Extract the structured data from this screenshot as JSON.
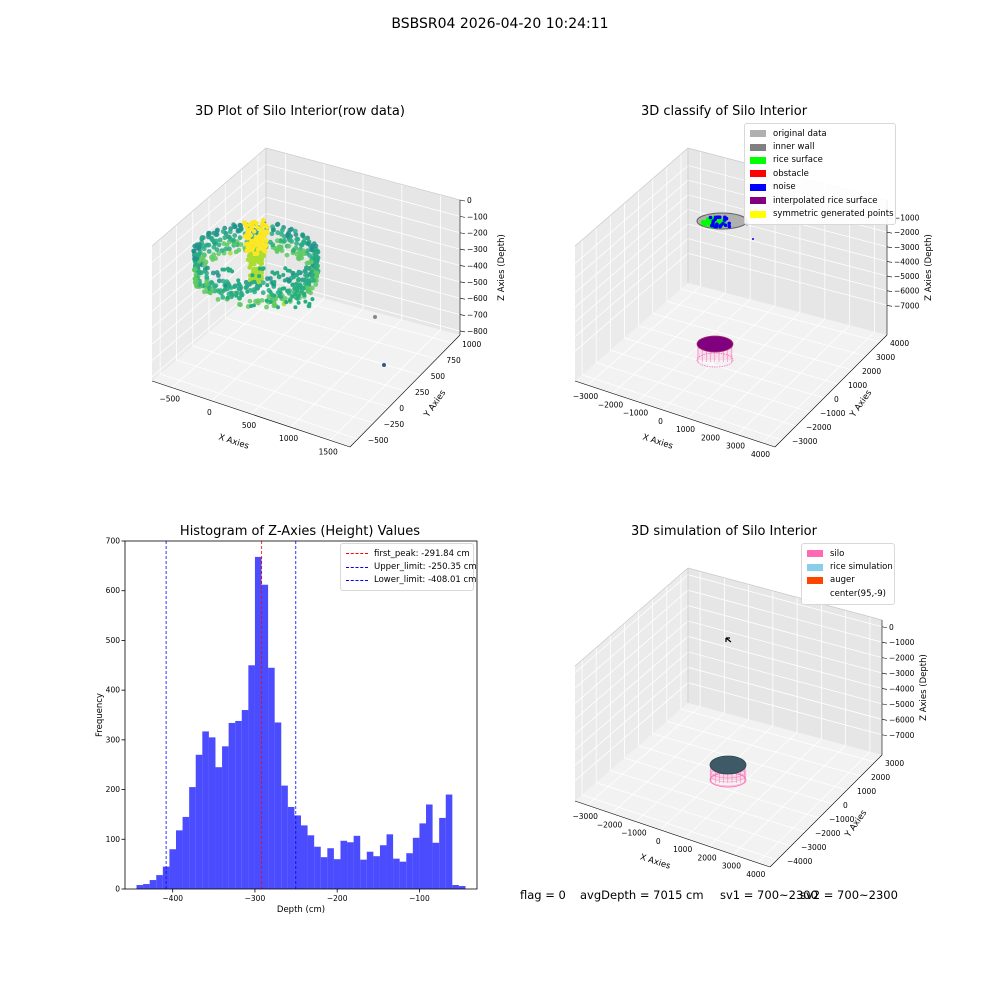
{
  "suptitle": "BSBSR04 2026-04-20 10:24:11",
  "chart_data": [
    {
      "type": "scatter",
      "subtype": "3d",
      "title": "3D Plot of Silo Interior(row data)",
      "xlabel": "X Axies",
      "ylabel": "Y Axies",
      "zlabel": "Z Axies (Depth)",
      "x_ticks": [
        "−500",
        "0",
        "500",
        "1000",
        "1500"
      ],
      "y_ticks": [
        "−500",
        "−250",
        "0",
        "250",
        "500",
        "750",
        "1000"
      ],
      "z_ticks": [
        "0",
        "−100",
        "−200",
        "−300",
        "−400",
        "−500",
        "−600",
        "−700",
        "−800"
      ],
      "colormap": "viridis",
      "grid": true
    },
    {
      "type": "scatter",
      "subtype": "3d",
      "title": "3D classify of Silo Interior",
      "xlabel": "X Axies",
      "ylabel": "Y Axies",
      "zlabel": "Z Axies (Depth)",
      "x_ticks": [
        "−3000",
        "−2000",
        "−1000",
        "0",
        "1000",
        "2000",
        "3000",
        "4000"
      ],
      "y_ticks": [
        "−3000",
        "−2000",
        "−1000",
        "0",
        "1000",
        "2000",
        "3000",
        "4000"
      ],
      "z_ticks": [
        "−1000",
        "−2000",
        "−3000",
        "−4000",
        "−5000",
        "−6000",
        "−7000"
      ],
      "legend": [
        {
          "label": "original data",
          "color": "#b0b0b0"
        },
        {
          "label": "inner wall",
          "color": "#808080"
        },
        {
          "label": "rice surface",
          "color": "#00ff00"
        },
        {
          "label": "obstacle",
          "color": "#ff0000"
        },
        {
          "label": "noise",
          "color": "#0000ff"
        },
        {
          "label": "interpolated rice surface",
          "color": "#800080"
        },
        {
          "label": "symmetric generated points",
          "color": "#ffff00"
        }
      ],
      "legend_position": "top-right",
      "grid": true
    },
    {
      "type": "bar",
      "subtype": "histogram",
      "title": "Histogram of Z-Axies (Height) Values",
      "xlabel": "Depth (cm)",
      "ylabel": "Frequency",
      "x_ticks": [
        "−400",
        "−300",
        "−200",
        "−100"
      ],
      "y_ticks": [
        "0",
        "100",
        "200",
        "300",
        "400",
        "500",
        "600",
        "700"
      ],
      "xlim": [
        -458,
        -30
      ],
      "ylim": [
        0,
        700
      ],
      "bin_width": 8,
      "bin_start": -444,
      "values": [
        8,
        10,
        18,
        28,
        45,
        80,
        118,
        145,
        205,
        270,
        317,
        305,
        245,
        287,
        334,
        338,
        360,
        450,
        668,
        612,
        445,
        335,
        208,
        165,
        148,
        128,
        108,
        85,
        64,
        82,
        60,
        97,
        94,
        107,
        59,
        75,
        66,
        88,
        110,
        61,
        55,
        72,
        103,
        132,
        170,
        93,
        143,
        190,
        8,
        6
      ],
      "bar_color": "#0000ff",
      "vlines": [
        {
          "label": "first_peak: -291.84 cm",
          "x": -291.84,
          "color": "#ff0000"
        },
        {
          "label": "Upper_limit: -250.35 cm",
          "x": -250.35,
          "color": "#0000ff"
        },
        {
          "label": "Lower_limit: -408.01 cm",
          "x": -408.01,
          "color": "#0000ff"
        }
      ],
      "legend_position": "top-right",
      "grid": false
    },
    {
      "type": "scatter",
      "subtype": "3d",
      "title": "3D simulation of Silo Interior",
      "xlabel": "X Axies",
      "ylabel": "Y Axies",
      "zlabel": "Z Axies (Depth)",
      "x_ticks": [
        "−3000",
        "−2000",
        "−1000",
        "0",
        "1000",
        "2000",
        "3000",
        "4000"
      ],
      "y_ticks": [
        "−4000",
        "−3000",
        "−2000",
        "−1000",
        "0",
        "1000",
        "2000",
        "3000"
      ],
      "z_ticks": [
        "0",
        "−1000",
        "−2000",
        "−3000",
        "−4000",
        "−5000",
        "−6000",
        "−7000"
      ],
      "legend": [
        {
          "label": "silo",
          "color": "#ff69b4"
        },
        {
          "label": "rice simulation",
          "color": "#87ceeb"
        },
        {
          "label": "auger",
          "color": "#ff4500"
        },
        {
          "label": "center(95,-9)",
          "color": "#ffffff"
        }
      ],
      "legend_position": "top-right",
      "grid": true
    }
  ],
  "footer": {
    "flag": "flag = 0",
    "avg": "avgDepth = 7015 cm",
    "sv1": "sv1 = 700~2300",
    "sv2": "sv2 = 700~2300"
  }
}
